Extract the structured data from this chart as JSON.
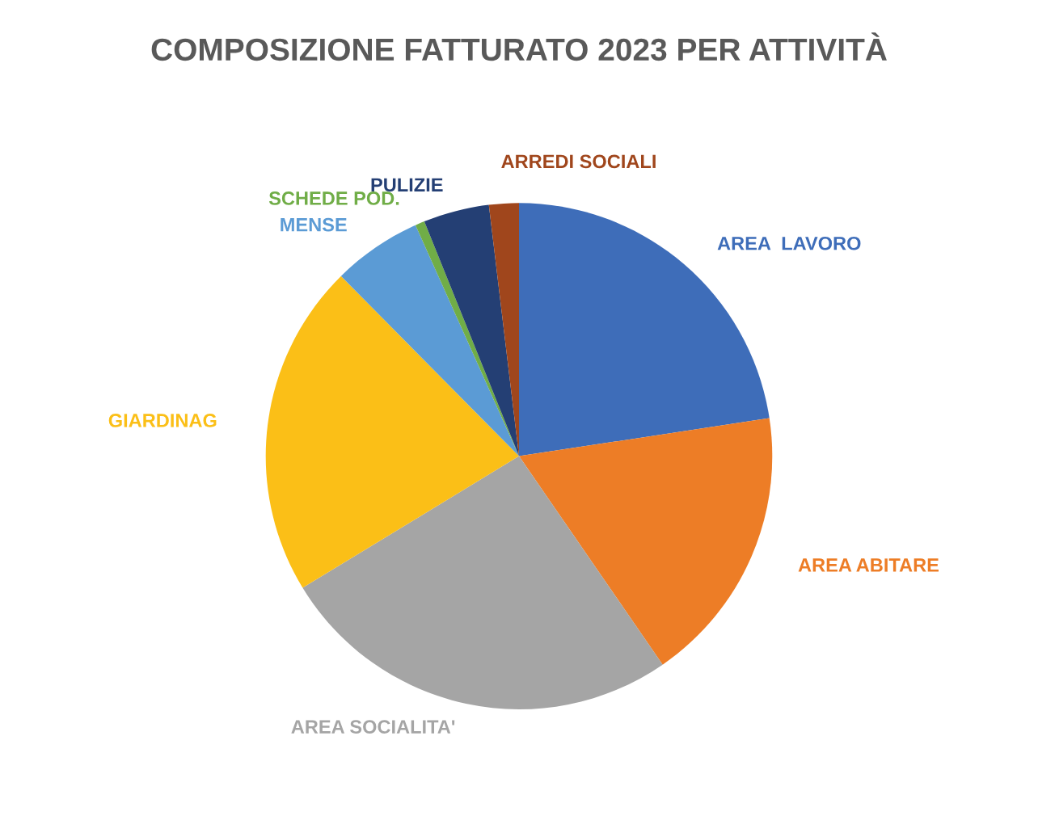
{
  "chart_data": {
    "type": "pie",
    "title": "COMPOSIZIONE FATTURATO 2023 PER ATTIVITÀ",
    "categories": [
      "AREA  LAVORO",
      "AREA ABITARE",
      "AREA SOCIALITA'",
      "GIARDINAG",
      "MENSE",
      "SCHEDE POD.",
      "PULIZIE",
      "ARREDI SOCIALI"
    ],
    "values": [
      22.6,
      17.8,
      25.9,
      21.3,
      5.7,
      0.6,
      4.2,
      1.9
    ],
    "colors": [
      "#3e6db9",
      "#ed7d26",
      "#a5a5a5",
      "#fbbf17",
      "#5b9bd5",
      "#70ad47",
      "#243f74",
      "#a0461c"
    ],
    "legend": false
  }
}
